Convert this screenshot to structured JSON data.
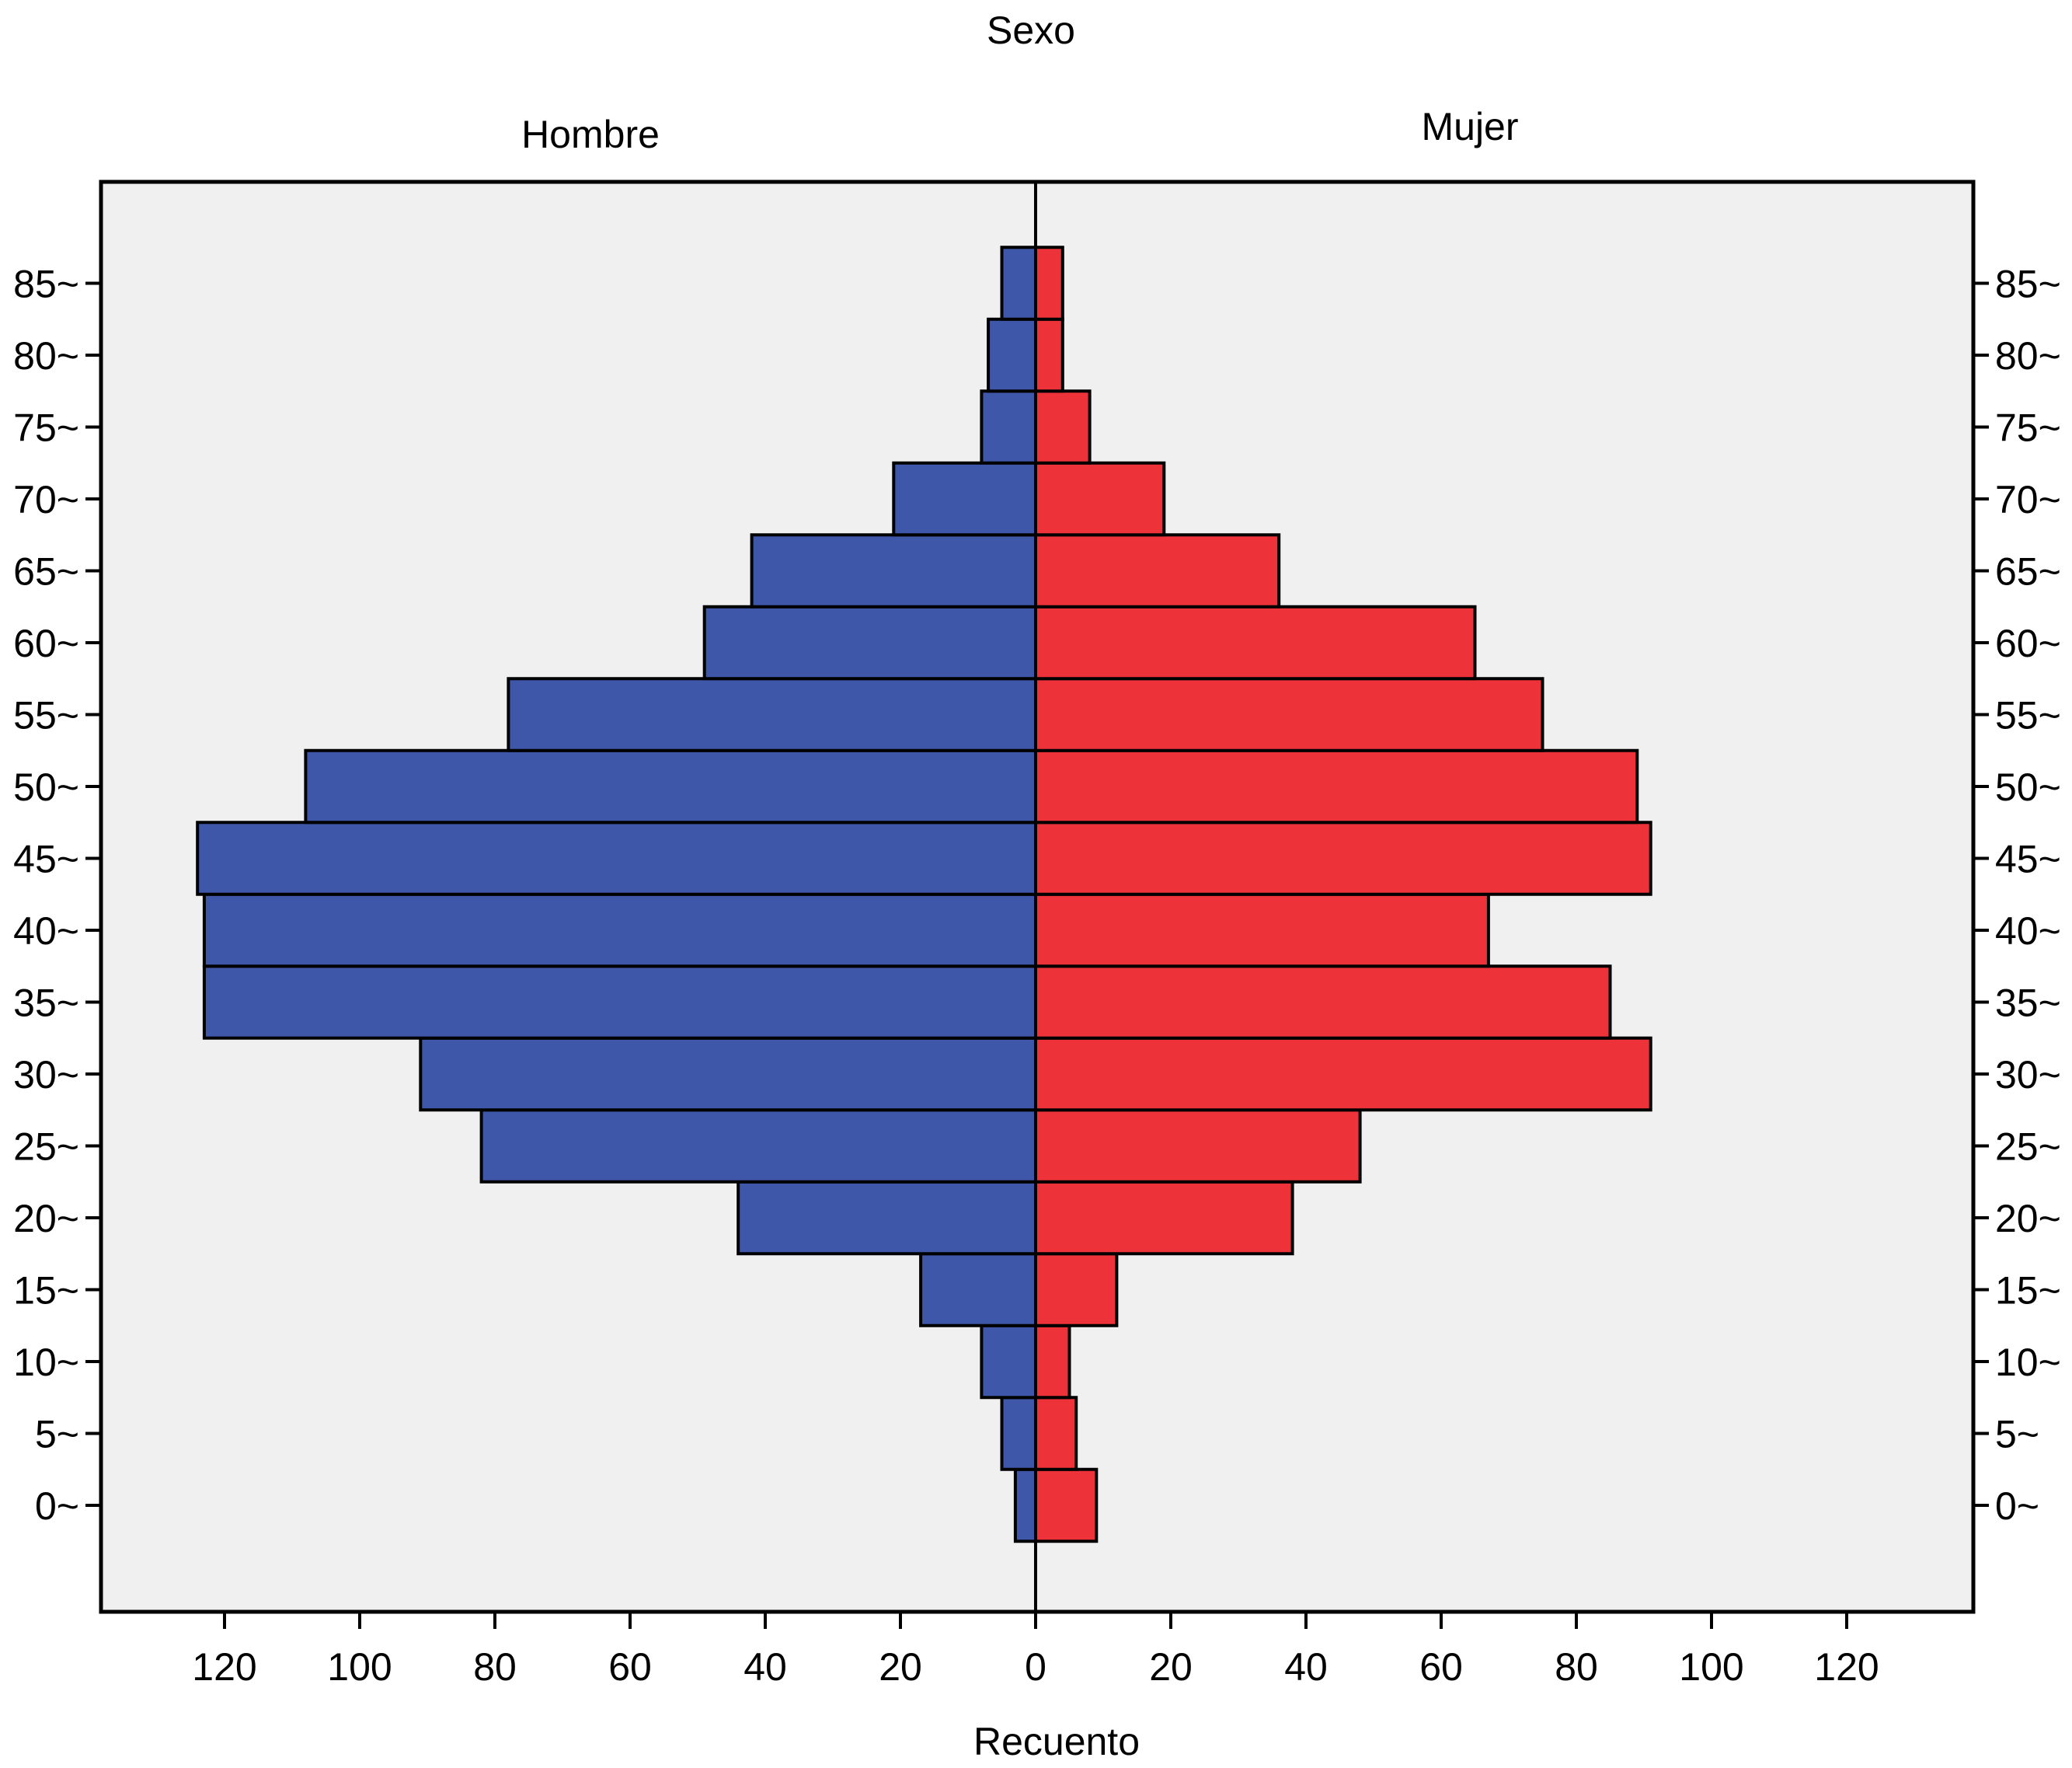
{
  "chart_data": {
    "type": "bar",
    "orientation": "horizontal",
    "variant": "population-pyramid",
    "title": "Sexo",
    "xlabel": "Recuento",
    "ylabel": "",
    "categories": [
      "0~",
      "5~",
      "10~",
      "15~",
      "20~",
      "25~",
      "30~",
      "35~",
      "40~",
      "45~",
      "50~",
      "55~",
      "60~",
      "65~",
      "70~",
      "75~",
      "80~",
      "85~"
    ],
    "series": [
      {
        "name": "Hombre",
        "side": "left",
        "color": "#3e57a8",
        "values": [
          3,
          5,
          8,
          17,
          44,
          82,
          91,
          123,
          123,
          124,
          108,
          78,
          49,
          42,
          21,
          8,
          7,
          5
        ]
      },
      {
        "name": "Mujer",
        "side": "right",
        "color": "#ee3239",
        "values": [
          9,
          6,
          5,
          12,
          38,
          48,
          91,
          85,
          67,
          91,
          89,
          75,
          65,
          36,
          19,
          8,
          4,
          4
        ]
      }
    ],
    "x_ticks": [
      "120",
      "100",
      "80",
      "60",
      "40",
      "20",
      "0",
      "20",
      "40",
      "60",
      "80",
      "100",
      "120"
    ],
    "xlim": [
      -139,
      139
    ],
    "grid": false,
    "background": "#f0f0f0"
  }
}
